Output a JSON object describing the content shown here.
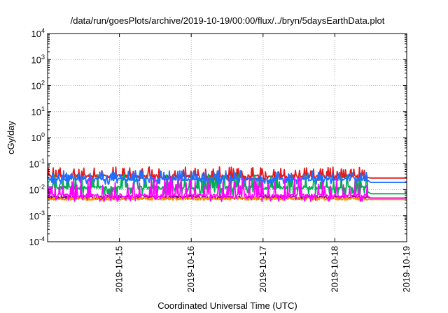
{
  "chart_data": {
    "type": "line",
    "title": "/data/run/goesPlots/archive/2019-10-19/00:00/flux/../bryn/5daysEarthData.plot",
    "xlabel": "Coordinated Universal Time (UTC)",
    "ylabel": "cGy/day",
    "yscale": "log",
    "ylim": [
      0.0001,
      10000
    ],
    "y_ticks": [
      {
        "base": "10",
        "exp": "-4",
        "value": 0.0001
      },
      {
        "base": "10",
        "exp": "-3",
        "value": 0.001
      },
      {
        "base": "10",
        "exp": "-2",
        "value": 0.01
      },
      {
        "base": "10",
        "exp": "-1",
        "value": 0.1
      },
      {
        "base": "10",
        "exp": "0",
        "value": 1
      },
      {
        "base": "10",
        "exp": "1",
        "value": 10
      },
      {
        "base": "10",
        "exp": "2",
        "value": 100
      },
      {
        "base": "10",
        "exp": "3",
        "value": 1000
      },
      {
        "base": "10",
        "exp": "4",
        "value": 10000
      }
    ],
    "xlim": [
      "2019-10-14T00:00",
      "2019-10-19T00:00"
    ],
    "x_ticks": [
      "2019-10-15",
      "2019-10-16",
      "2019-10-17",
      "2019-10-18",
      "2019-10-19"
    ],
    "grid": true,
    "series": [
      {
        "color": "#e41a1c",
        "data_end": "2019-10-18T11:00",
        "level": 0.033,
        "range": [
          0.022,
          0.075
        ],
        "final": 0.028
      },
      {
        "color": "#00b050",
        "data_end": "2019-10-18T11:00",
        "level": 0.012,
        "range": [
          0.006,
          0.04
        ],
        "final": 0.007
      },
      {
        "color": "#1f6fff",
        "data_end": "2019-10-18T11:00",
        "level": 0.025,
        "range": [
          0.016,
          0.055
        ],
        "final": 0.019
      },
      {
        "color": "#8b008b",
        "data_end": "2019-10-18T11:00",
        "level": 0.005,
        "range": [
          0.0045,
          0.006
        ],
        "final": 0.0048
      },
      {
        "color": "#ff8c00",
        "data_end": "2019-10-18T11:00",
        "level": 0.0045,
        "range": [
          0.0042,
          0.005
        ],
        "final": 0.0042
      },
      {
        "color": "#ff00ff",
        "data_end": "2019-10-18T11:00",
        "level": 0.006,
        "range": [
          0.0035,
          0.03
        ],
        "final": 0.0048
      }
    ]
  }
}
